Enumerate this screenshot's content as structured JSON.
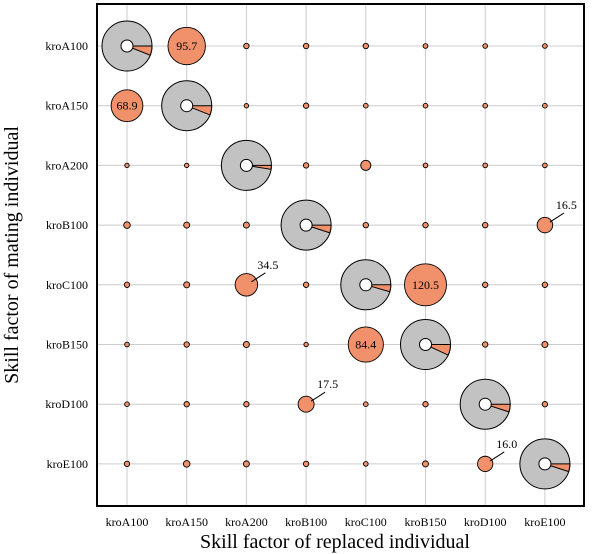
{
  "chart_data": {
    "type": "scatter",
    "subtype": "bubble matrix with pie glyphs on diagonal",
    "xlabel": "Skill factor of replaced individual",
    "ylabel": "Skill factor of mating individual",
    "x_categories": [
      "kroA100",
      "kroA150",
      "kroA200",
      "kroB100",
      "kroC100",
      "kroB150",
      "kroD100",
      "kroE100"
    ],
    "y_categories": [
      "kroA100",
      "kroA150",
      "kroA200",
      "kroB100",
      "kroC100",
      "kroB150",
      "kroD100",
      "kroE100"
    ],
    "grid": true,
    "colors": {
      "bubble": "#f0916b",
      "pie_main": "#c2c2c2",
      "pie_slice": "#f0916b",
      "pie_hole": "#ffffff",
      "grid": "#cccccc",
      "frame": "#000000"
    },
    "diagonal": [
      {
        "x": "kroA100",
        "y": "kroA100",
        "slice_fraction": 0.06
      },
      {
        "x": "kroA150",
        "y": "kroA150",
        "slice_fraction": 0.06
      },
      {
        "x": "kroA200",
        "y": "kroA200",
        "slice_fraction": 0.025
      },
      {
        "x": "kroB100",
        "y": "kroB100",
        "slice_fraction": 0.05
      },
      {
        "x": "kroC100",
        "y": "kroC100",
        "slice_fraction": 0.045
      },
      {
        "x": "kroB150",
        "y": "kroB150",
        "slice_fraction": 0.07
      },
      {
        "x": "kroD100",
        "y": "kroD100",
        "slice_fraction": 0.05
      },
      {
        "x": "kroE100",
        "y": "kroE100",
        "slice_fraction": 0.05
      }
    ],
    "points": [
      {
        "x": "kroA150",
        "y": "kroA100",
        "value": 95.7,
        "label": "95.7",
        "label_pos": "inside"
      },
      {
        "x": "kroA200",
        "y": "kroA100",
        "value": 2
      },
      {
        "x": "kroB100",
        "y": "kroA100",
        "value": 2
      },
      {
        "x": "kroC100",
        "y": "kroA100",
        "value": 2
      },
      {
        "x": "kroB150",
        "y": "kroA100",
        "value": 1.5
      },
      {
        "x": "kroD100",
        "y": "kroA100",
        "value": 1.5
      },
      {
        "x": "kroE100",
        "y": "kroA100",
        "value": 1.5
      },
      {
        "x": "kroA100",
        "y": "kroA150",
        "value": 68.9,
        "label": "68.9",
        "label_pos": "inside"
      },
      {
        "x": "kroA200",
        "y": "kroA150",
        "value": 1
      },
      {
        "x": "kroB100",
        "y": "kroA150",
        "value": 2
      },
      {
        "x": "kroC100",
        "y": "kroA150",
        "value": 1.5
      },
      {
        "x": "kroB150",
        "y": "kroA150",
        "value": 1.5
      },
      {
        "x": "kroD100",
        "y": "kroA150",
        "value": 1.5
      },
      {
        "x": "kroE100",
        "y": "kroA150",
        "value": 1.5
      },
      {
        "x": "kroA100",
        "y": "kroA200",
        "value": 1.2
      },
      {
        "x": "kroA150",
        "y": "kroA200",
        "value": 1
      },
      {
        "x": "kroB100",
        "y": "kroA200",
        "value": 2
      },
      {
        "x": "kroC100",
        "y": "kroA200",
        "value": 7
      },
      {
        "x": "kroB150",
        "y": "kroA200",
        "value": 1.5
      },
      {
        "x": "kroD100",
        "y": "kroA200",
        "value": 1.5
      },
      {
        "x": "kroE100",
        "y": "kroA200",
        "value": 1.5
      },
      {
        "x": "kroA100",
        "y": "kroB100",
        "value": 3
      },
      {
        "x": "kroA150",
        "y": "kroB100",
        "value": 2.5
      },
      {
        "x": "kroA200",
        "y": "kroB100",
        "value": 2.5
      },
      {
        "x": "kroC100",
        "y": "kroB100",
        "value": 2
      },
      {
        "x": "kroB150",
        "y": "kroB100",
        "value": 2
      },
      {
        "x": "kroD100",
        "y": "kroB100",
        "value": 2
      },
      {
        "x": "kroE100",
        "y": "kroB100",
        "value": 16.5,
        "label": "16.5",
        "label_pos": "callout"
      },
      {
        "x": "kroA100",
        "y": "kroC100",
        "value": 2
      },
      {
        "x": "kroA150",
        "y": "kroC100",
        "value": 2.5
      },
      {
        "x": "kroA200",
        "y": "kroC100",
        "value": 34.5,
        "label": "34.5",
        "label_pos": "callout"
      },
      {
        "x": "kroB100",
        "y": "kroC100",
        "value": 2
      },
      {
        "x": "kroB150",
        "y": "kroC100",
        "value": 120.5,
        "label": "120.5",
        "label_pos": "inside"
      },
      {
        "x": "kroD100",
        "y": "kroC100",
        "value": 2
      },
      {
        "x": "kroE100",
        "y": "kroC100",
        "value": 2
      },
      {
        "x": "kroA100",
        "y": "kroB150",
        "value": 1.5
      },
      {
        "x": "kroA150",
        "y": "kroB150",
        "value": 2
      },
      {
        "x": "kroA200",
        "y": "kroB150",
        "value": 2.5
      },
      {
        "x": "kroB100",
        "y": "kroB150",
        "value": 1
      },
      {
        "x": "kroC100",
        "y": "kroB150",
        "value": 84.4,
        "label": "84.4",
        "label_pos": "inside"
      },
      {
        "x": "kroD100",
        "y": "kroB150",
        "value": 2
      },
      {
        "x": "kroE100",
        "y": "kroB150",
        "value": 2.5
      },
      {
        "x": "kroA100",
        "y": "kroD100",
        "value": 1.5
      },
      {
        "x": "kroA150",
        "y": "kroD100",
        "value": 2
      },
      {
        "x": "kroA200",
        "y": "kroD100",
        "value": 2
      },
      {
        "x": "kroB100",
        "y": "kroD100",
        "value": 17.5,
        "label": "17.5",
        "label_pos": "callout"
      },
      {
        "x": "kroC100",
        "y": "kroD100",
        "value": 1.5
      },
      {
        "x": "kroB150",
        "y": "kroD100",
        "value": 2
      },
      {
        "x": "kroE100",
        "y": "kroD100",
        "value": 2
      },
      {
        "x": "kroA100",
        "y": "kroE100",
        "value": 2
      },
      {
        "x": "kroA150",
        "y": "kroE100",
        "value": 3
      },
      {
        "x": "kroA200",
        "y": "kroE100",
        "value": 2.5
      },
      {
        "x": "kroB100",
        "y": "kroE100",
        "value": 2
      },
      {
        "x": "kroC100",
        "y": "kroE100",
        "value": 1.5
      },
      {
        "x": "kroB150",
        "y": "kroE100",
        "value": 2.5
      },
      {
        "x": "kroD100",
        "y": "kroE100",
        "value": 16.0,
        "label": "16.0",
        "label_pos": "callout"
      }
    ]
  }
}
